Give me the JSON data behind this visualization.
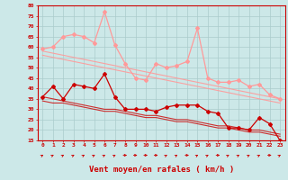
{
  "x": [
    0,
    1,
    2,
    3,
    4,
    5,
    6,
    7,
    8,
    9,
    10,
    11,
    12,
    13,
    14,
    15,
    16,
    17,
    18,
    19,
    20,
    21,
    22,
    23
  ],
  "rafales_line": [
    59,
    60,
    65,
    66,
    65,
    62,
    77,
    61,
    52,
    45,
    44,
    52,
    50,
    51,
    53,
    69,
    45,
    43,
    43,
    44,
    41,
    42,
    37,
    35
  ],
  "moyen_line": [
    36,
    41,
    35,
    42,
    41,
    40,
    47,
    36,
    30,
    30,
    30,
    29,
    31,
    32,
    32,
    32,
    29,
    28,
    21,
    21,
    20,
    26,
    23,
    15
  ],
  "trend_rafales_1": [
    58,
    57,
    56,
    55,
    54,
    53,
    52,
    51,
    50,
    49,
    48,
    47,
    46,
    45,
    44,
    43,
    42,
    41,
    40,
    39,
    38,
    37,
    36,
    35
  ],
  "trend_rafales_2": [
    56,
    55,
    54,
    53,
    52,
    51,
    50,
    49,
    48,
    47,
    46,
    45,
    44,
    43,
    42,
    41,
    40,
    39,
    38,
    37,
    36,
    35,
    34,
    33
  ],
  "trend_moyen_1": [
    36,
    35,
    34,
    33,
    32,
    31,
    30,
    30,
    29,
    28,
    27,
    27,
    26,
    25,
    25,
    24,
    23,
    22,
    22,
    21,
    20,
    20,
    19,
    18
  ],
  "trend_moyen_2": [
    34,
    33,
    33,
    32,
    31,
    30,
    29,
    29,
    28,
    27,
    26,
    26,
    25,
    24,
    24,
    23,
    22,
    21,
    21,
    20,
    19,
    19,
    18,
    17
  ],
  "bg_color": "#cce8e8",
  "grid_color": "#aacccc",
  "rafales_color": "#ff9999",
  "moyen_color": "#cc0000",
  "xlabel": "Vent moyen/en rafales ( km/h )",
  "ylim": [
    15,
    80
  ],
  "yticks": [
    15,
    20,
    25,
    30,
    35,
    40,
    45,
    50,
    55,
    60,
    65,
    70,
    75,
    80
  ],
  "arrow_directions": [
    45,
    45,
    45,
    45,
    45,
    45,
    45,
    45,
    0,
    0,
    0,
    0,
    45,
    45,
    0,
    45,
    45,
    0,
    45,
    45,
    45,
    45,
    0,
    45
  ]
}
